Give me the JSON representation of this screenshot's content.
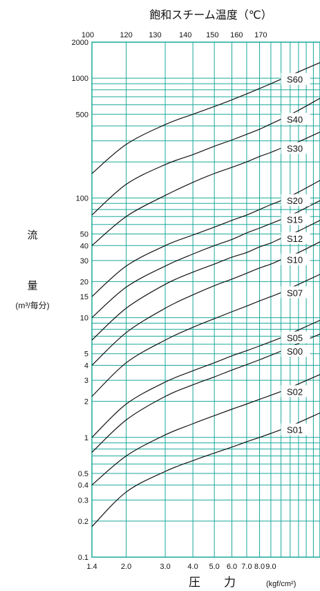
{
  "chart_data": {
    "type": "line",
    "top_title": "飽和スチーム温度（℃）",
    "bottom_title": "圧　　力",
    "bottom_unit": "(kgf/cm²)",
    "ylabel_char1": "流",
    "ylabel_char2": "量",
    "ylabel_unit": "(m³/毎分)",
    "top_ticks": [
      {
        "label": "100",
        "x": 1.4
      },
      {
        "label": "120",
        "x": 2.0
      },
      {
        "label": "130",
        "x": 2.7
      },
      {
        "label": "140",
        "x": 3.7
      },
      {
        "label": "150",
        "x": 4.9
      },
      {
        "label": "160",
        "x": 6.3
      },
      {
        "label": "170",
        "x": 8.1
      }
    ],
    "x_ticks": [
      1.4,
      2.0,
      3.0,
      4.0,
      5.0,
      6.0,
      7.0,
      8.0,
      9.0
    ],
    "x_tick_labels": [
      "1.4",
      "2.0",
      "3.0",
      "4.0",
      "5.0",
      "6.0",
      "7.0",
      "8.0",
      "9.0"
    ],
    "xlim": [
      1.4,
      15.0
    ],
    "y_scale": "log",
    "ylim": [
      0.1,
      2000
    ],
    "y_ticks": [
      0.1,
      0.2,
      0.3,
      0.4,
      0.5,
      1,
      2,
      3,
      4,
      5,
      10,
      15,
      20,
      30,
      40,
      50,
      100,
      500,
      1000,
      2000
    ],
    "y_tick_labels": [
      "0.1",
      "0.2",
      "0.3",
      "0.4",
      "0.5",
      "1",
      "2",
      "3",
      "4",
      "5",
      "10",
      "15",
      "20",
      "30",
      "40",
      "50",
      "100",
      "500",
      "1000",
      "2000"
    ],
    "grid": true,
    "colors": {
      "grid": "#1aa89a",
      "curve": "#111111",
      "text": "#111111"
    },
    "series": [
      {
        "name": "S60",
        "points": [
          [
            1.4,
            160
          ],
          [
            2.0,
            280
          ],
          [
            3.0,
            410
          ],
          [
            4.0,
            500
          ],
          [
            5.0,
            580
          ],
          [
            6.0,
            660
          ],
          [
            7.0,
            740
          ],
          [
            8.0,
            820
          ],
          [
            9.0,
            900
          ],
          [
            10.0,
            980
          ],
          [
            12.0,
            1130
          ],
          [
            15.0,
            1350
          ]
        ]
      },
      {
        "name": "S40",
        "points": [
          [
            1.4,
            72
          ],
          [
            2.0,
            130
          ],
          [
            3.0,
            190
          ],
          [
            4.0,
            230
          ],
          [
            5.0,
            270
          ],
          [
            6.0,
            305
          ],
          [
            7.0,
            340
          ],
          [
            8.0,
            375
          ],
          [
            9.0,
            415
          ],
          [
            10.0,
            455
          ],
          [
            12.0,
            540
          ],
          [
            15.0,
            680
          ]
        ]
      },
      {
        "name": "S30",
        "points": [
          [
            1.4,
            40
          ],
          [
            2.0,
            70
          ],
          [
            3.0,
            105
          ],
          [
            4.0,
            135
          ],
          [
            5.0,
            160
          ],
          [
            6.0,
            180
          ],
          [
            7.0,
            200
          ],
          [
            8.0,
            222
          ],
          [
            9.0,
            240
          ],
          [
            10.0,
            260
          ],
          [
            12.0,
            295
          ],
          [
            15.0,
            355
          ]
        ]
      },
      {
        "name": "S20",
        "points": [
          [
            1.4,
            15
          ],
          [
            2.0,
            27
          ],
          [
            3.0,
            40
          ],
          [
            4.0,
            49
          ],
          [
            5.0,
            57
          ],
          [
            6.0,
            65
          ],
          [
            7.0,
            72
          ],
          [
            8.0,
            80
          ],
          [
            9.0,
            88
          ],
          [
            10.0,
            95
          ],
          [
            12.0,
            112
          ],
          [
            15.0,
            140
          ]
        ]
      },
      {
        "name": "S15",
        "points": [
          [
            1.4,
            10
          ],
          [
            2.0,
            18
          ],
          [
            3.0,
            27
          ],
          [
            4.0,
            34
          ],
          [
            5.0,
            40
          ],
          [
            6.0,
            45
          ],
          [
            7.0,
            51
          ],
          [
            8.0,
            56
          ],
          [
            9.0,
            61
          ],
          [
            10.0,
            66
          ],
          [
            12.0,
            77
          ],
          [
            15.0,
            95
          ]
        ]
      },
      {
        "name": "S12",
        "points": [
          [
            1.4,
            6.5
          ],
          [
            2.0,
            12
          ],
          [
            3.0,
            19
          ],
          [
            4.0,
            24
          ],
          [
            5.0,
            28
          ],
          [
            6.0,
            32
          ],
          [
            7.0,
            35
          ],
          [
            8.0,
            39
          ],
          [
            9.0,
            42
          ],
          [
            10.0,
            46
          ],
          [
            12.0,
            53
          ],
          [
            15.0,
            65
          ]
        ]
      },
      {
        "name": "S10",
        "points": [
          [
            1.4,
            4
          ],
          [
            2.0,
            7.5
          ],
          [
            3.0,
            12
          ],
          [
            4.0,
            15.5
          ],
          [
            5.0,
            18.5
          ],
          [
            6.0,
            21
          ],
          [
            7.0,
            23.5
          ],
          [
            8.0,
            26
          ],
          [
            9.0,
            28
          ],
          [
            10.0,
            30.5
          ],
          [
            12.0,
            35
          ],
          [
            15.0,
            43
          ]
        ]
      },
      {
        "name": "S07",
        "points": [
          [
            1.4,
            2.2
          ],
          [
            2.0,
            4.2
          ],
          [
            3.0,
            6.5
          ],
          [
            4.0,
            8.3
          ],
          [
            5.0,
            9.8
          ],
          [
            6.0,
            11.2
          ],
          [
            7.0,
            12.5
          ],
          [
            8.0,
            13.8
          ],
          [
            9.0,
            15
          ],
          [
            10.0,
            16.2
          ],
          [
            12.0,
            19
          ],
          [
            15.0,
            23
          ]
        ]
      },
      {
        "name": "S05",
        "points": [
          [
            1.4,
            1
          ],
          [
            2.0,
            1.9
          ],
          [
            3.0,
            2.9
          ],
          [
            4.0,
            3.6
          ],
          [
            5.0,
            4.2
          ],
          [
            6.0,
            4.8
          ],
          [
            7.0,
            5.3
          ],
          [
            8.0,
            5.8
          ],
          [
            9.0,
            6.3
          ],
          [
            10.0,
            6.8
          ],
          [
            12.0,
            7.9
          ],
          [
            15.0,
            9.5
          ]
        ]
      },
      {
        "name": "S00",
        "points": [
          [
            1.4,
            0.75
          ],
          [
            2.0,
            1.4
          ],
          [
            3.0,
            2.2
          ],
          [
            4.0,
            2.75
          ],
          [
            5.0,
            3.2
          ],
          [
            6.0,
            3.65
          ],
          [
            7.0,
            4.05
          ],
          [
            8.0,
            4.45
          ],
          [
            9.0,
            4.85
          ],
          [
            10.0,
            5.25
          ],
          [
            12.0,
            6.1
          ],
          [
            15.0,
            7.3
          ]
        ]
      },
      {
        "name": "S02",
        "points": [
          [
            1.4,
            0.4
          ],
          [
            2.0,
            0.7
          ],
          [
            3.0,
            1.05
          ],
          [
            4.0,
            1.3
          ],
          [
            5.0,
            1.52
          ],
          [
            6.0,
            1.72
          ],
          [
            7.0,
            1.9
          ],
          [
            8.0,
            2.08
          ],
          [
            9.0,
            2.25
          ],
          [
            10.0,
            2.42
          ],
          [
            12.0,
            2.8
          ],
          [
            15.0,
            3.35
          ]
        ]
      },
      {
        "name": "S01",
        "points": [
          [
            1.4,
            0.18
          ],
          [
            2.0,
            0.35
          ],
          [
            3.0,
            0.52
          ],
          [
            4.0,
            0.64
          ],
          [
            5.0,
            0.74
          ],
          [
            6.0,
            0.83
          ],
          [
            7.0,
            0.92
          ],
          [
            8.0,
            1.0
          ],
          [
            9.0,
            1.08
          ],
          [
            10.0,
            1.16
          ],
          [
            12.0,
            1.33
          ],
          [
            15.0,
            1.6
          ]
        ]
      }
    ]
  }
}
